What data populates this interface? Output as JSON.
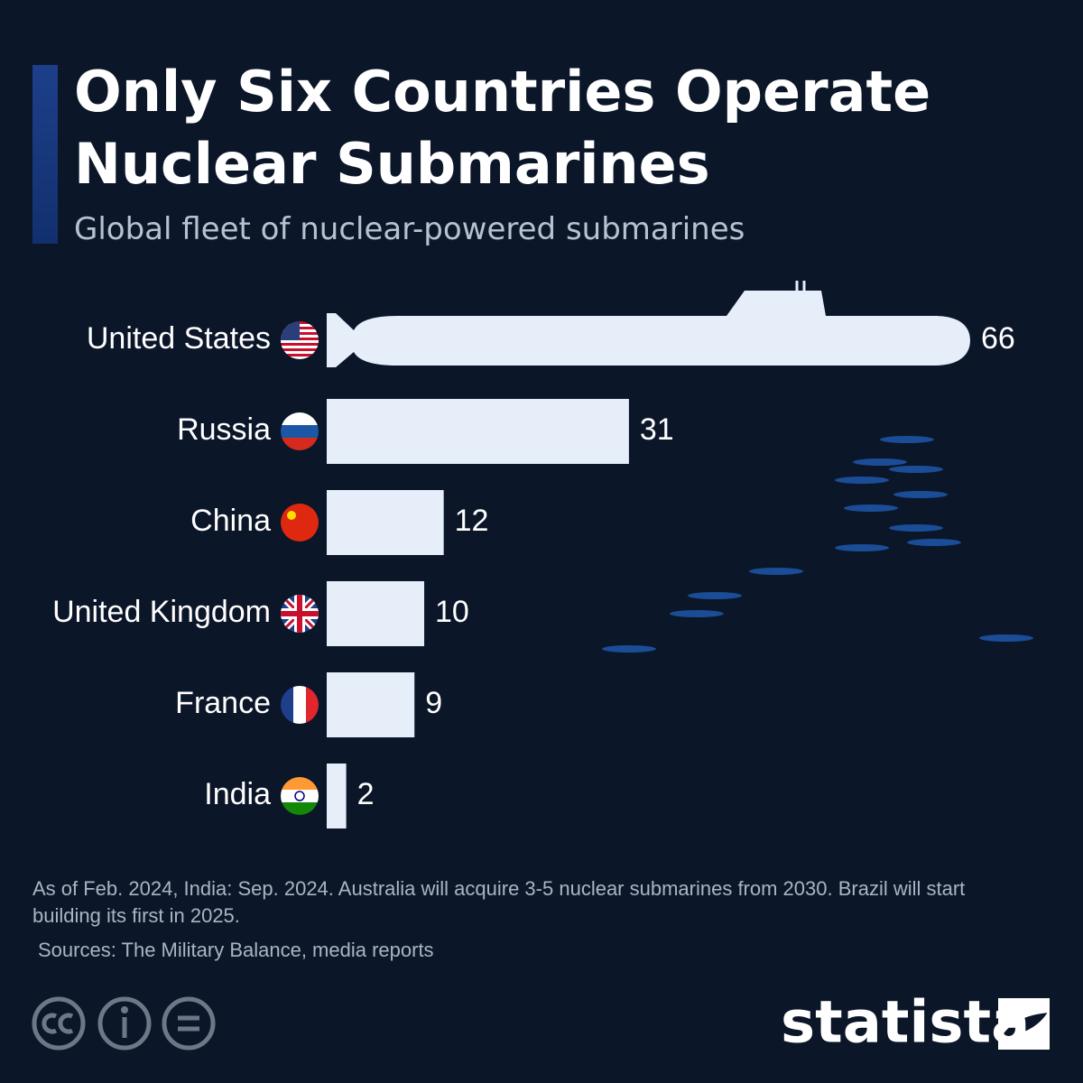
{
  "chart_data": {
    "type": "bar",
    "title": "Only Six Countries Operate Nuclear Submarines",
    "subtitle": "Global fleet of nuclear-powered submarines",
    "categories": [
      "United States",
      "Russia",
      "China",
      "United Kingdom",
      "France",
      "India"
    ],
    "values": [
      66,
      31,
      12,
      10,
      9,
      2
    ],
    "color": "#e6eefa",
    "note": "As of Feb. 2024, India: Sep. 2024. Australia will acquire 3-5 nuclear submarines from 2030. Brazil will start building its first in 2025.",
    "source": "Sources: The Military Balance, media reports",
    "brand": "statista"
  }
}
